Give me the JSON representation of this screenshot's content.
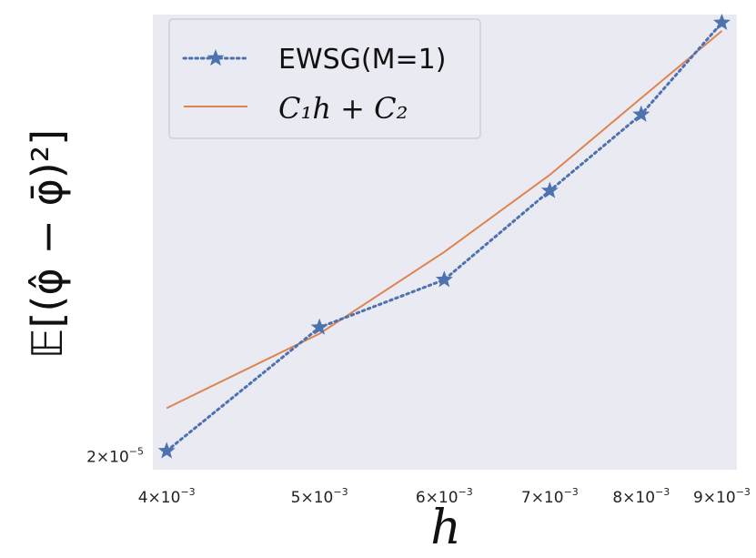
{
  "chart_data": {
    "type": "line",
    "xscale": "log",
    "yscale": "log",
    "xlabel": "h",
    "ylabel": "𝔼[(φ̂ − φ̄)²]",
    "xlim": [
      0.00392,
      0.0092
    ],
    "ylim": [
      1.95e-05,
      4.6e-05
    ],
    "grid": false,
    "legend_placement": "top-left",
    "xticks": [
      {
        "value": 0.004,
        "label": "4×10",
        "exp": "−3"
      },
      {
        "value": 0.005,
        "label": "5×10",
        "exp": "−3"
      },
      {
        "value": 0.006,
        "label": "6×10",
        "exp": "−3"
      },
      {
        "value": 0.007,
        "label": "7×10",
        "exp": "−3"
      },
      {
        "value": 0.008,
        "label": "8×10",
        "exp": "−3"
      },
      {
        "value": 0.009,
        "label": "9×10",
        "exp": "−3"
      }
    ],
    "yticks": [
      {
        "value": 2e-05,
        "label": "2×10",
        "exp": "−5"
      }
    ],
    "series": [
      {
        "name": "EWSG(M=1)",
        "style": "dotted-star",
        "color": "#4c72b0",
        "x": [
          0.004,
          0.005,
          0.006,
          0.007,
          0.008,
          0.009
        ],
        "y": [
          2.02e-05,
          2.55e-05,
          2.79e-05,
          3.3e-05,
          3.81e-05,
          4.53e-05
        ]
      },
      {
        "name": "C₁h + C₂",
        "style": "solid",
        "color": "#dd8452",
        "x": [
          0.004,
          0.005,
          0.006,
          0.007,
          0.008,
          0.009
        ],
        "y": [
          2.19e-05,
          2.52e-05,
          2.94e-05,
          3.4e-05,
          3.93e-05,
          4.46e-05
        ]
      }
    ],
    "legend": {
      "entries": [
        {
          "label": "EWSG(M=1)"
        },
        {
          "label": "C₁h + C₂"
        }
      ]
    }
  }
}
